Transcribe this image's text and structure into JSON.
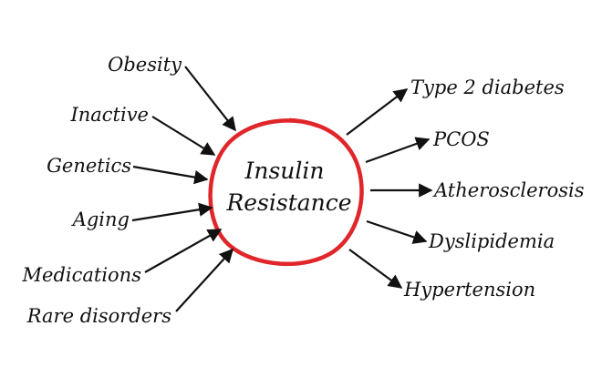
{
  "center": {
    "line1": "Insulin",
    "line2": "Resistance",
    "ring_color": "#e0262a"
  },
  "causes": [
    {
      "label": "Obesity"
    },
    {
      "label": "Inactive"
    },
    {
      "label": "Genetics"
    },
    {
      "label": "Aging"
    },
    {
      "label": "Medications"
    },
    {
      "label": "Rare disorders"
    }
  ],
  "effects": [
    {
      "label": "Type 2 diabetes"
    },
    {
      "label": "PCOS"
    },
    {
      "label": "Atherosclerosis"
    },
    {
      "label": "Dyslipidemia"
    },
    {
      "label": "Hypertension"
    }
  ],
  "colors": {
    "text": "#111111",
    "arrow": "#111111",
    "background": "#ffffff"
  }
}
